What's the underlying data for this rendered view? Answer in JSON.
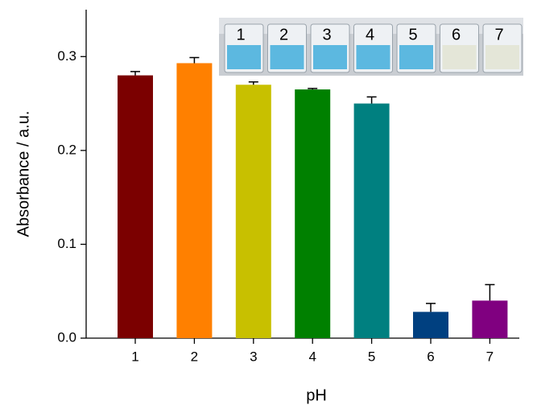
{
  "chart_data": {
    "type": "bar",
    "x_label": "pH",
    "y_label": "Absorbance / a.u.",
    "categories": [
      "1",
      "2",
      "3",
      "4",
      "5",
      "6",
      "7"
    ],
    "values": [
      0.28,
      0.293,
      0.27,
      0.265,
      0.25,
      0.028,
      0.04
    ],
    "errors": [
      0.004,
      0.006,
      0.003,
      0.001,
      0.007,
      0.009,
      0.017
    ],
    "colors": [
      "#7b0000",
      "#ff8000",
      "#c8c000",
      "#008000",
      "#008080",
      "#004080",
      "#800080"
    ],
    "ylim": [
      0,
      0.35
    ],
    "yticks": [
      {
        "value": 0,
        "label": "0.0"
      },
      0.1,
      0.2,
      0.3
    ],
    "inset_labels": [
      "1",
      "2",
      "3",
      "4",
      "5",
      "6",
      "7"
    ]
  }
}
